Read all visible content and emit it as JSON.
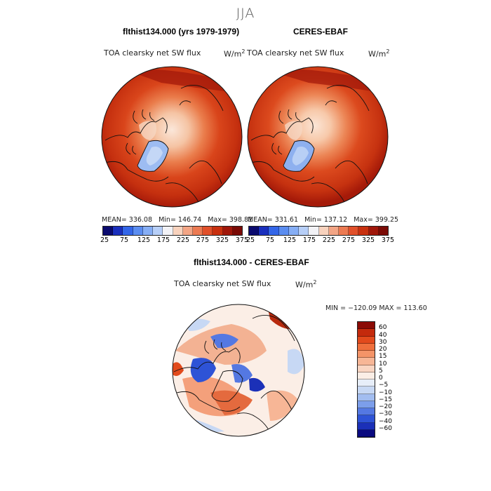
{
  "season": "JJA",
  "panels": [
    {
      "title": "flthist134.000 (yrs 1979-1979)",
      "variable": "TOA clearsky net SW flux",
      "units_base": "W/m",
      "units_exp": "2",
      "mean": "MEAN= 336.08",
      "min": "Min= 146.74",
      "max": "Max= 398.81"
    },
    {
      "title": "CERES-EBAF",
      "variable": "TOA clearsky net SW flux",
      "units_base": "W/m",
      "units_exp": "2",
      "mean": "MEAN= 331.61",
      "min": "Min= 137.12",
      "max": "Max= 399.25"
    }
  ],
  "colorbar_top": {
    "colors": [
      "#0a0a6e",
      "#1a2fbd",
      "#3366e8",
      "#5b8df0",
      "#86aef5",
      "#b7cff8",
      "#f2f2f6",
      "#f8d2bd",
      "#f3a585",
      "#ec7a52",
      "#e1502a",
      "#c8300f",
      "#a0170a",
      "#7a0a05"
    ],
    "ticks": [
      "25",
      "75",
      "125",
      "175",
      "225",
      "275",
      "325",
      "375"
    ]
  },
  "difference": {
    "title": "flthist134.000 - CERES-EBAF",
    "variable": "TOA clearsky net SW flux",
    "units_base": "W/m",
    "units_exp": "2",
    "minmax": "MIN = −120.09  MAX = 113.60"
  },
  "colorbar_diff": {
    "colors": [
      "#8b0a05",
      "#c42a0c",
      "#e24a1c",
      "#ef6f3c",
      "#f49468",
      "#f7b696",
      "#f9d5c2",
      "#fbeee6",
      "#e7eef9",
      "#c7d8f4",
      "#a2bdf0",
      "#7c9eea",
      "#5478e2",
      "#2e53d6",
      "#1b30b8",
      "#0a0a80"
    ],
    "labels": [
      "60",
      "40",
      "30",
      "20",
      "15",
      "10",
      "5",
      "0",
      "−5",
      "−10",
      "−15",
      "−20",
      "−30",
      "−40",
      "−60"
    ]
  }
}
